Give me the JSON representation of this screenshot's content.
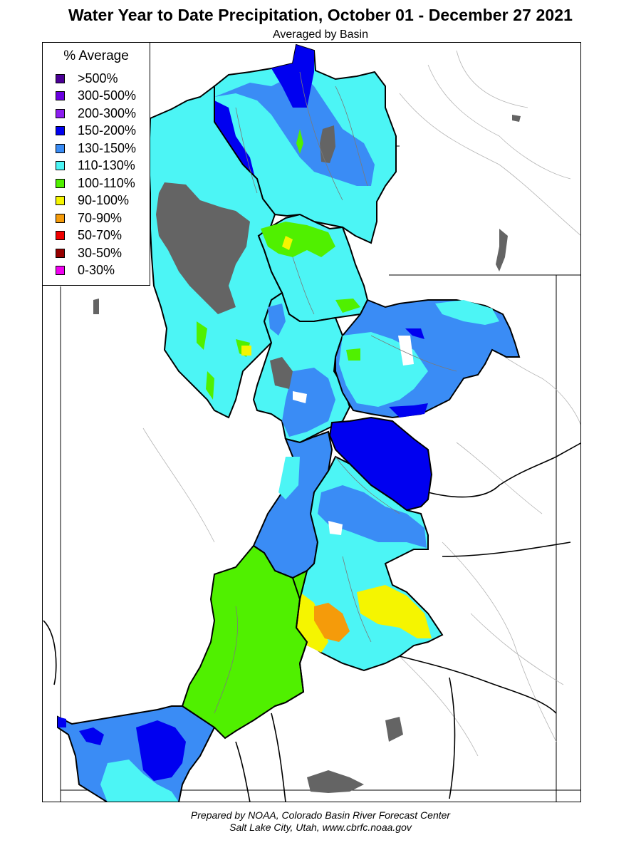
{
  "header": {
    "title": "Water Year to Date Precipitation, October 01  - December 27 2021",
    "subtitle": "Averaged by Basin"
  },
  "legend": {
    "title": "% Average",
    "items": [
      {
        "label": ">500%",
        "color": "#4B0096"
      },
      {
        "label": "300-500%",
        "color": "#6A00E0"
      },
      {
        "label": "200-300%",
        "color": "#8C1EF0"
      },
      {
        "label": "150-200%",
        "color": "#0000F0"
      },
      {
        "label": "130-150%",
        "color": "#3A8CF5"
      },
      {
        "label": "110-130%",
        "color": "#4CF5F5"
      },
      {
        "label": "100-110%",
        "color": "#50F000"
      },
      {
        "label": "90-100%",
        "color": "#F5F500"
      },
      {
        "label": "70-90%",
        "color": "#F59B0A"
      },
      {
        "label": "50-70%",
        "color": "#F00000"
      },
      {
        "label": "30-50%",
        "color": "#960000"
      },
      {
        "label": "0-30%",
        "color": "#F000F0"
      }
    ]
  },
  "map_colors": {
    "lake": "#646464",
    "no_data": "#ffffff",
    "boundary": "#000000",
    "river": "#8c8c8c"
  },
  "footer": {
    "line1": "Prepared by NOAA, Colorado Basin River Forecast Center",
    "line2": "Salt Lake City, Utah, www.cbrfc.noaa.gov"
  }
}
